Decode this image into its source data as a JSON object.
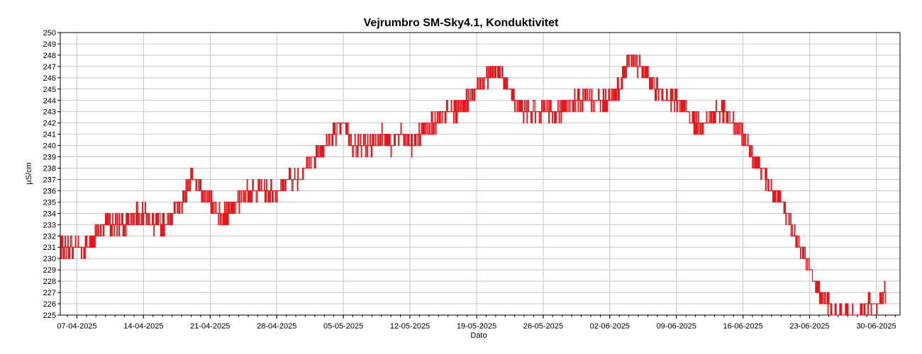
{
  "chart_data": {
    "type": "line",
    "title": "Vejrumbro SM-Sky4.1, Konduktivitet",
    "xlabel": "Dato",
    "ylabel": "µS/cm",
    "ylim": [
      225,
      250
    ],
    "yticks": [
      225,
      226,
      227,
      228,
      229,
      230,
      231,
      232,
      233,
      234,
      235,
      236,
      237,
      238,
      239,
      240,
      241,
      242,
      243,
      244,
      245,
      246,
      247,
      248,
      249,
      250
    ],
    "xlim": [
      "2025-04-05T06:00",
      "2025-07-02T12:00"
    ],
    "xticks": [
      {
        "date": "2025-04-07",
        "label": "07-04-2025"
      },
      {
        "date": "2025-04-14",
        "label": "14-04-2025"
      },
      {
        "date": "2025-04-21",
        "label": "21-04-2025"
      },
      {
        "date": "2025-04-28",
        "label": "28-04-2025"
      },
      {
        "date": "2025-05-05",
        "label": "05-05-2025"
      },
      {
        "date": "2025-05-12",
        "label": "12-05-2025"
      },
      {
        "date": "2025-05-19",
        "label": "19-05-2025"
      },
      {
        "date": "2025-05-26",
        "label": "26-05-2025"
      },
      {
        "date": "2025-06-02",
        "label": "02-06-2025"
      },
      {
        "date": "2025-06-09",
        "label": "09-06-2025"
      },
      {
        "date": "2025-06-16",
        "label": "16-06-2025"
      },
      {
        "date": "2025-06-23",
        "label": "23-06-2025"
      },
      {
        "date": "2025-06-30",
        "label": "30-06-2025"
      }
    ],
    "grid": true,
    "line_color": "#e8161b",
    "series": [
      {
        "x": [
          "2025-04-05",
          "2025-04-06",
          "2025-04-07",
          "2025-04-08",
          "2025-04-09",
          "2025-04-10",
          "2025-04-11",
          "2025-04-12",
          "2025-04-13",
          "2025-04-14",
          "2025-04-15",
          "2025-04-16",
          "2025-04-17",
          "2025-04-18",
          "2025-04-19",
          "2025-04-20",
          "2025-04-21",
          "2025-04-22",
          "2025-04-23",
          "2025-04-24",
          "2025-04-25",
          "2025-04-26",
          "2025-04-27",
          "2025-04-28",
          "2025-04-29",
          "2025-04-30",
          "2025-05-01",
          "2025-05-02",
          "2025-05-03",
          "2025-05-04",
          "2025-05-05",
          "2025-05-06",
          "2025-05-07",
          "2025-05-08",
          "2025-05-09",
          "2025-05-10",
          "2025-05-11",
          "2025-05-12",
          "2025-05-13",
          "2025-05-14",
          "2025-05-15",
          "2025-05-16",
          "2025-05-17",
          "2025-05-18",
          "2025-05-19",
          "2025-05-20",
          "2025-05-21",
          "2025-05-22",
          "2025-05-23",
          "2025-05-24",
          "2025-05-25",
          "2025-05-26",
          "2025-05-27",
          "2025-05-28",
          "2025-05-29",
          "2025-05-30",
          "2025-05-31",
          "2025-06-01",
          "2025-06-02",
          "2025-06-03",
          "2025-06-04",
          "2025-06-05",
          "2025-06-06",
          "2025-06-07",
          "2025-06-08",
          "2025-06-09",
          "2025-06-10",
          "2025-06-11",
          "2025-06-12",
          "2025-06-13",
          "2025-06-14",
          "2025-06-15",
          "2025-06-16",
          "2025-06-17",
          "2025-06-18",
          "2025-06-19",
          "2025-06-20",
          "2025-06-21",
          "2025-06-22",
          "2025-06-23",
          "2025-06-24",
          "2025-06-25",
          "2025-06-26",
          "2025-06-27",
          "2025-06-28",
          "2025-06-29",
          "2025-06-30",
          "2025-07-01"
        ],
        "values": [
          231,
          231,
          231,
          231,
          232,
          233,
          233,
          233,
          234,
          234,
          233,
          233,
          234,
          235,
          237,
          236,
          235,
          234,
          234,
          235,
          236,
          236,
          236,
          236,
          237,
          237,
          238,
          239,
          240,
          241,
          242,
          240,
          240,
          240,
          241,
          240,
          241,
          240,
          241,
          242,
          242,
          243,
          243,
          244,
          245,
          246,
          247,
          246,
          244,
          243,
          243,
          243,
          243,
          243,
          244,
          244,
          244,
          244,
          244,
          245,
          248,
          247,
          246,
          245,
          244,
          244,
          243,
          242,
          242,
          243,
          243,
          242,
          241,
          239,
          238,
          236,
          235,
          233,
          231,
          229,
          227,
          226,
          225,
          225,
          225,
          226,
          226,
          227
        ]
      }
    ]
  }
}
